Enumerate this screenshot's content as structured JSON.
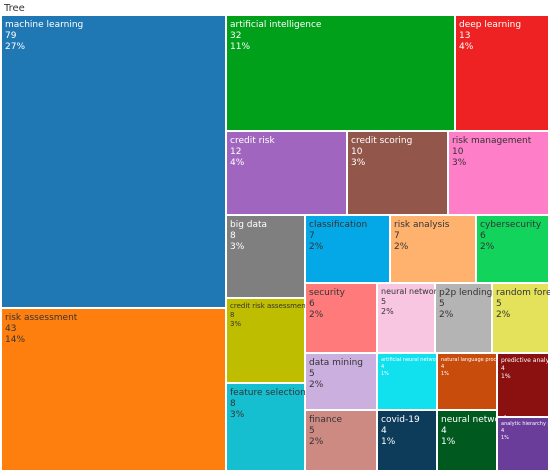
{
  "chart_data": {
    "type": "treemap",
    "title": "Tree",
    "cells": [
      {
        "label": "machine learning",
        "value": "79",
        "pct": "27%",
        "color": "#1f77b4"
      },
      {
        "label": "risk assessment",
        "value": "43",
        "pct": "14%",
        "color": "#ff7f0e"
      },
      {
        "label": "artificial intelligence",
        "value": "32",
        "pct": "11%",
        "color": "#00a01b"
      },
      {
        "label": "deep learning",
        "value": "13",
        "pct": "4%",
        "color": "#ee2222"
      },
      {
        "label": "credit risk",
        "value": "12",
        "pct": "4%",
        "color": "#a066bf"
      },
      {
        "label": "credit scoring",
        "value": "10",
        "pct": "3%",
        "color": "#92564b"
      },
      {
        "label": "risk management",
        "value": "10",
        "pct": "3%",
        "color": "#ff7ec8"
      },
      {
        "label": "big data",
        "value": "8",
        "pct": "3%",
        "color": "#7f7f7f"
      },
      {
        "label": "classification",
        "value": "7",
        "pct": "2%",
        "color": "#05a8e6"
      },
      {
        "label": "risk analysis",
        "value": "7",
        "pct": "2%",
        "color": "#ffb26e"
      },
      {
        "label": "cybersecurity",
        "value": "6",
        "pct": "2%",
        "color": "#12d35c"
      },
      {
        "label": "credit risk assessment",
        "value": "8",
        "pct": "3%",
        "color": "#bebd00"
      },
      {
        "label": "security",
        "value": "6",
        "pct": "2%",
        "color": "#ff7b7b"
      },
      {
        "label": "neural network",
        "value": "5",
        "pct": "2%",
        "color": "#f9c6e2"
      },
      {
        "label": "p2p lending",
        "value": "5",
        "pct": "2%",
        "color": "#b4b4b4"
      },
      {
        "label": "random forest",
        "value": "5",
        "pct": "2%",
        "color": "#e3e25a"
      },
      {
        "label": "feature selection",
        "value": "8",
        "pct": "3%",
        "color": "#15bfcf"
      },
      {
        "label": "data mining",
        "value": "5",
        "pct": "2%",
        "color": "#cbb0df"
      },
      {
        "label": "artificial neural networks",
        "value": "4",
        "pct": "1%",
        "color": "#11e0ee"
      },
      {
        "label": "natural language processing",
        "value": "4",
        "pct": "1%",
        "color": "#c84c0c"
      },
      {
        "label": "predictive analytics",
        "value": "4",
        "pct": "1%",
        "color": "#8b1010"
      },
      {
        "label": "finance",
        "value": "5",
        "pct": "2%",
        "color": "#cc8a82"
      },
      {
        "label": "covid-19",
        "value": "4",
        "pct": "1%",
        "color": "#0c3c5a"
      },
      {
        "label": "neural networks",
        "value": "4",
        "pct": "1%",
        "color": "#005a20"
      },
      {
        "label": "analytic hierarchy process",
        "value": "4",
        "pct": "1%",
        "color": "#6a3d9a"
      }
    ]
  }
}
